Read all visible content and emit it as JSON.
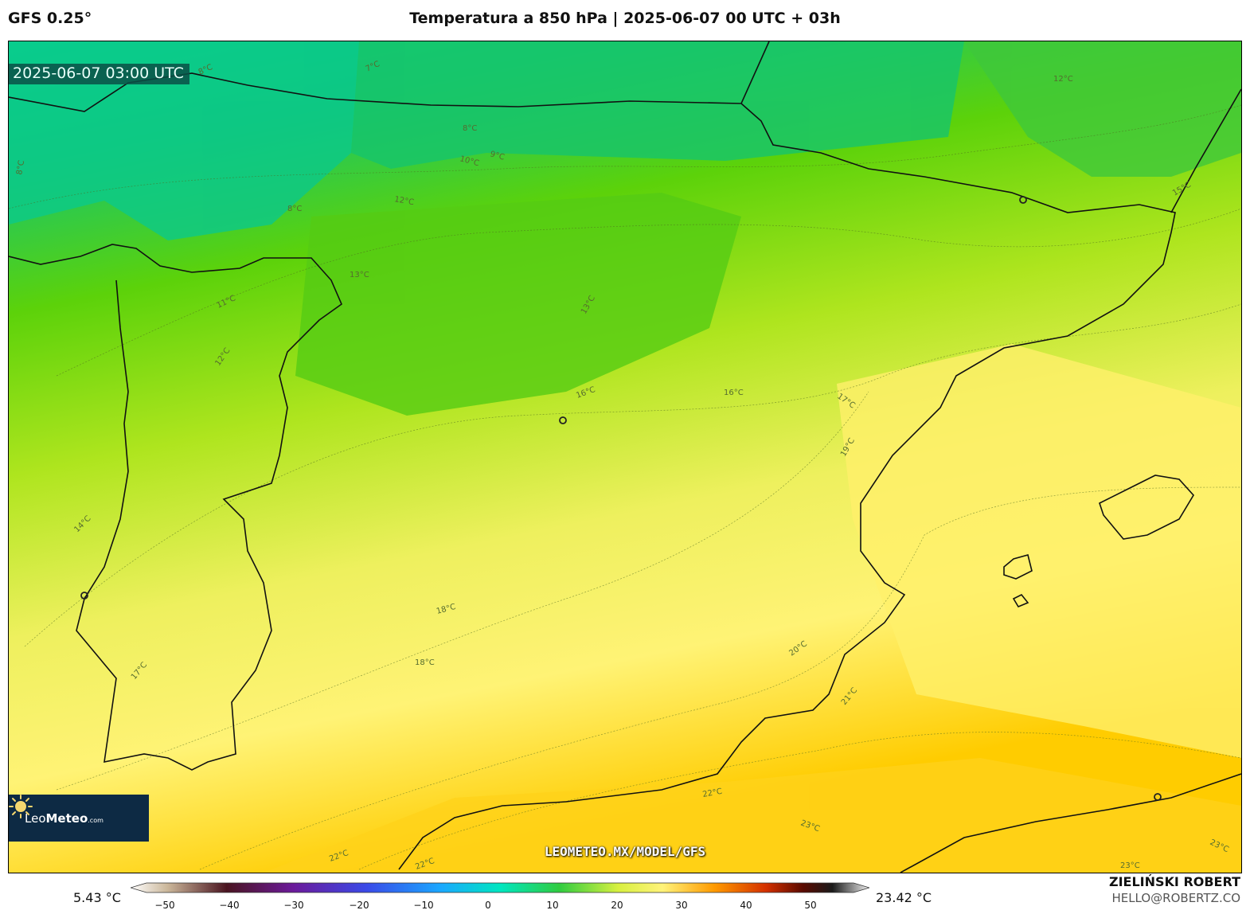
{
  "header": {
    "model": "GFS 0.25°",
    "title": "Temperatura a 850 hPa | 2025-06-07 00 UTC + 03h"
  },
  "map": {
    "valid_time": "2025-06-07 03:00 UTC",
    "url": "LEOMETEO.MX/MODEL/GFS",
    "brand": {
      "name_light": "Leo",
      "name_bold": "Meteo",
      "tld": ".com"
    },
    "contour_labels": [
      "7°C",
      "8°C",
      "8°C",
      "8°C",
      "8°C",
      "9°C",
      "10°C",
      "11°C",
      "12°C",
      "12°C",
      "12°C",
      "13°C",
      "13°C",
      "14°C",
      "15°C",
      "16°C",
      "16°C",
      "17°C",
      "17°C",
      "18°C",
      "18°C",
      "19°C",
      "20°C",
      "21°C",
      "22°C",
      "22°C",
      "22°C",
      "23°C",
      "23°C",
      "23°C"
    ],
    "colors": {
      "cold": "#00d59a",
      "mid": "#5cd20a",
      "warm": "#fff375",
      "hot": "#ffcc00",
      "coast": "#111111"
    }
  },
  "colorbar": {
    "min_value": "5.43 °C",
    "max_value": "23.42 °C",
    "ticks": [
      "−50",
      "−40",
      "−30",
      "−20",
      "−10",
      "0",
      "10",
      "20",
      "30",
      "40",
      "50"
    ]
  },
  "credits": {
    "author": "ZIELIŃSKI ROBERT",
    "email": "HELLO@ROBERTZ.CO"
  }
}
